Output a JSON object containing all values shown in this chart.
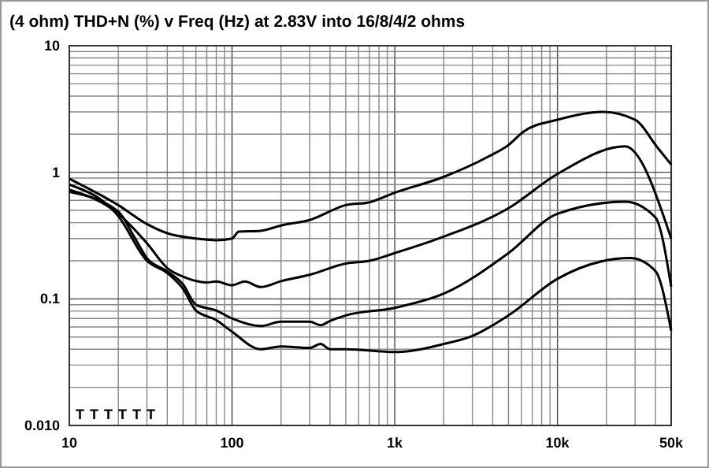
{
  "chart_data": {
    "type": "line",
    "title": "(4 ohm) THD+N (%) v Freq (Hz) at 2.83V into 16/8/4/2 ohms",
    "log": "xy",
    "grid": true,
    "line_style": "solid",
    "marker": "none",
    "xlim": [
      10,
      50000
    ],
    "ylim": [
      0.01,
      10
    ],
    "xticks": [
      10,
      {
        "value": 20,
        "label": null
      },
      {
        "value": 30,
        "label": null
      },
      {
        "value": 40,
        "label": null
      },
      {
        "value": 50,
        "label": null
      },
      {
        "value": 60,
        "label": null
      },
      {
        "value": 70,
        "label": null
      },
      {
        "value": 80,
        "label": null
      },
      {
        "value": 90,
        "label": null
      },
      100,
      {
        "value": 200,
        "label": null
      },
      {
        "value": 300,
        "label": null
      },
      {
        "value": 400,
        "label": null
      },
      {
        "value": 500,
        "label": null
      },
      {
        "value": 600,
        "label": null
      },
      {
        "value": 700,
        "label": null
      },
      {
        "value": 800,
        "label": null
      },
      {
        "value": 900,
        "label": null
      },
      {
        "value": 1000,
        "label": "1k"
      },
      {
        "value": 2000,
        "label": null
      },
      {
        "value": 3000,
        "label": null
      },
      {
        "value": 4000,
        "label": null
      },
      {
        "value": 5000,
        "label": null
      },
      {
        "value": 6000,
        "label": null
      },
      {
        "value": 7000,
        "label": null
      },
      {
        "value": 8000,
        "label": null
      },
      {
        "value": 9000,
        "label": null
      },
      {
        "value": 10000,
        "label": "10k"
      },
      {
        "value": 20000,
        "label": null
      },
      {
        "value": 30000,
        "label": null
      },
      {
        "value": 40000,
        "label": null
      },
      {
        "value": 50000,
        "label": "50k"
      }
    ],
    "yticks": [
      {
        "value": 0.01,
        "label": "0.010"
      },
      {
        "value": 0.02,
        "label": null
      },
      {
        "value": 0.03,
        "label": null
      },
      {
        "value": 0.04,
        "label": null
      },
      {
        "value": 0.05,
        "label": null
      },
      {
        "value": 0.06,
        "label": null
      },
      {
        "value": 0.07,
        "label": null
      },
      {
        "value": 0.08,
        "label": null
      },
      {
        "value": 0.09,
        "label": null
      },
      0.1,
      {
        "value": 0.2,
        "label": null
      },
      {
        "value": 0.3,
        "label": null
      },
      {
        "value": 0.4,
        "label": null
      },
      {
        "value": 0.5,
        "label": null
      },
      {
        "value": 0.6,
        "label": null
      },
      {
        "value": 0.7,
        "label": null
      },
      {
        "value": 0.8,
        "label": null
      },
      {
        "value": 0.9,
        "label": null
      },
      1,
      {
        "value": 2,
        "label": null
      },
      {
        "value": 3,
        "label": null
      },
      {
        "value": 4,
        "label": null
      },
      {
        "value": 5,
        "label": null
      },
      {
        "value": 6,
        "label": null
      },
      {
        "value": 7,
        "label": null
      },
      {
        "value": 8,
        "label": null
      },
      {
        "value": 9,
        "label": null
      },
      10
    ],
    "series": [
      {
        "color": "#000000",
        "x": [
          10,
          20,
          30,
          40,
          60,
          80,
          100,
          110,
          150,
          200,
          300,
          500,
          700,
          1000,
          2000,
          3760,
          5000,
          6200,
          10000,
          19000,
          30000,
          41000,
          50000
        ],
        "values": [
          0.89,
          0.55,
          0.39,
          0.33,
          0.3,
          0.29,
          0.3,
          0.34,
          0.345,
          0.38,
          0.42,
          0.55,
          0.58,
          0.69,
          0.92,
          1.33,
          1.64,
          2.1,
          2.6,
          3.0,
          2.6,
          1.58,
          1.15
        ]
      },
      {
        "color": "#000000",
        "x": [
          10,
          20,
          30,
          40,
          50,
          70,
          80,
          100,
          120,
          150,
          200,
          300,
          500,
          700,
          1000,
          2000,
          5000,
          10000,
          26000,
          50000
        ],
        "values": [
          0.73,
          0.47,
          0.275,
          0.175,
          0.15,
          0.135,
          0.137,
          0.128,
          0.137,
          0.124,
          0.138,
          0.155,
          0.19,
          0.2,
          0.23,
          0.31,
          0.52,
          0.97,
          1.6,
          0.3
        ]
      },
      {
        "color": "#000000",
        "x": [
          10,
          20,
          25,
          30,
          40,
          50,
          60,
          80,
          100,
          150,
          200,
          300,
          350,
          400,
          500,
          1000,
          2000,
          5000,
          10000,
          26000,
          40000,
          50000
        ],
        "values": [
          0.7,
          0.49,
          0.31,
          0.21,
          0.165,
          0.13,
          0.09,
          0.081,
          0.07,
          0.061,
          0.066,
          0.066,
          0.062,
          0.067,
          0.074,
          0.085,
          0.11,
          0.23,
          0.47,
          0.585,
          0.44,
          0.125
        ]
      },
      {
        "color": "#000000",
        "x": [
          10,
          20,
          30,
          40,
          50,
          60,
          80,
          100,
          150,
          200,
          300,
          350,
          400,
          500,
          1000,
          2000,
          3000,
          5000,
          10000,
          28000,
          40000,
          50000
        ],
        "values": [
          0.8,
          0.45,
          0.2,
          0.16,
          0.12,
          0.081,
          0.068,
          0.055,
          0.04,
          0.042,
          0.041,
          0.044,
          0.04,
          0.04,
          0.038,
          0.044,
          0.051,
          0.074,
          0.144,
          0.21,
          0.166,
          0.056
        ]
      }
    ],
    "annotations": [
      "T",
      "T",
      "T",
      "T",
      "T",
      "T"
    ]
  }
}
